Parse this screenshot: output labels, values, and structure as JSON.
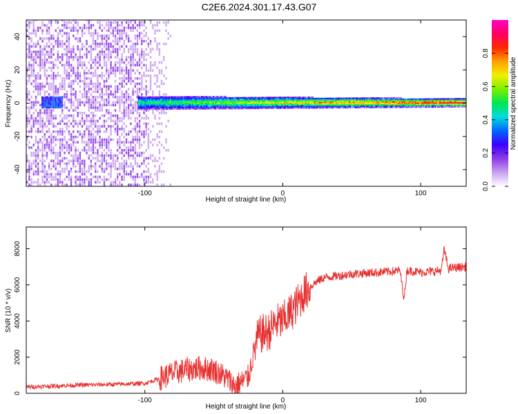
{
  "title": "C2E6.2024.301.17.43.G07",
  "colors": {
    "snr_line": "#e83030",
    "axis": "#000000"
  },
  "chart_data": [
    {
      "type": "heatmap",
      "xlabel": "Height of straight line (km)",
      "ylabel": "Frequency (Hz)",
      "xlim": [
        -186,
        133
      ],
      "ylim": [
        -50,
        50
      ],
      "x_ticks": [
        -100,
        0,
        100
      ],
      "y_ticks": [
        -40,
        -20,
        0,
        20,
        40
      ],
      "colorbar": {
        "label": "Normalized spectral amplitude",
        "range": [
          0,
          1
        ],
        "ticks": [
          0.0,
          0.2,
          0.4,
          0.6,
          0.8
        ],
        "colormap": [
          "#ffffff",
          "#c8a0f0",
          "#8c3ce6",
          "#3c00ff",
          "#0064ff",
          "#00dcdc",
          "#00e650",
          "#78f000",
          "#f0f000",
          "#ffa000",
          "#ff2800",
          "#ff0064",
          "#ff00c8"
        ]
      },
      "description_regions": {
        "noise_band_km": [
          -186,
          -82
        ],
        "signal_start_km": -105,
        "signal_center_hz": 0
      }
    },
    {
      "type": "line",
      "xlabel": "Height of straight line (km)",
      "ylabel": "SNR (10 * v/v)",
      "xlim": [
        -186,
        133
      ],
      "ylim": [
        0,
        9200
      ],
      "x_ticks": [
        -100,
        0,
        100
      ],
      "y_ticks": [
        0,
        2000,
        4000,
        6000,
        8000
      ],
      "series": [
        {
          "x": [
            -186,
            -150,
            -120,
            -100,
            -90,
            -80,
            -70,
            -60,
            -50,
            -40,
            -35,
            -30,
            -25,
            -20,
            -18,
            -15,
            -10,
            -5,
            0,
            5,
            10,
            15,
            20,
            25,
            30,
            40,
            50,
            60,
            70,
            80,
            85,
            88,
            90,
            100,
            110,
            115,
            117,
            120,
            125,
            133
          ],
          "y": [
            350,
            450,
            500,
            550,
            800,
            1100,
            1300,
            1400,
            1300,
            800,
            400,
            600,
            900,
            2600,
            3100,
            3300,
            3400,
            3900,
            4000,
            4400,
            4900,
            5500,
            5900,
            6200,
            6400,
            6500,
            6600,
            6650,
            6700,
            6750,
            6800,
            5200,
            6800,
            6700,
            6750,
            6800,
            8000,
            6900,
            6950,
            7000
          ]
        }
      ]
    }
  ]
}
